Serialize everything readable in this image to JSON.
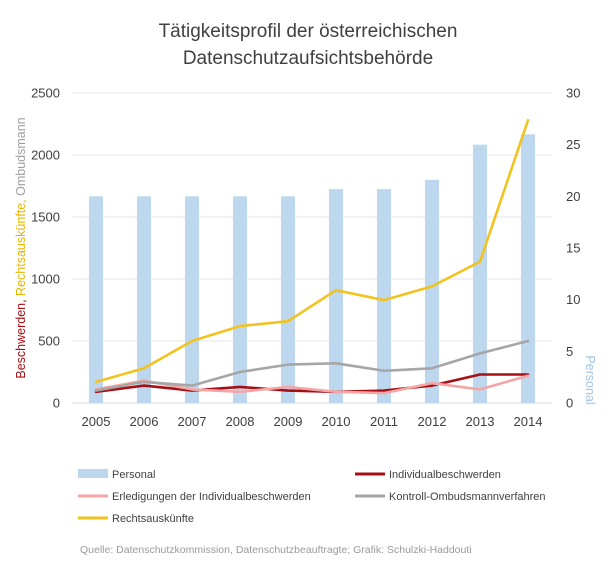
{
  "chart_data": {
    "type": "bar+line",
    "title": "Tätigkeitsprofil der österreichischen Datenschutzaufsichtsbehörde",
    "title_lines": [
      "Tätigkeitsprofil der österreichischen",
      "Datenschutzaufsichtsbehörde"
    ],
    "categories": [
      "2005",
      "2006",
      "2007",
      "2008",
      "2009",
      "2010",
      "2011",
      "2012",
      "2013",
      "2014"
    ],
    "left_axis": {
      "ylim": [
        0,
        2500
      ],
      "ticks": [
        "0",
        "500",
        "1000",
        "1500",
        "2000",
        "2500"
      ],
      "label_parts": [
        {
          "text": "Beschwerden, ",
          "color": "#a50f15"
        },
        {
          "text": "Rechtsauskünfte, ",
          "color": "#e8b400"
        },
        {
          "text": "Ombudsmann",
          "color": "#9e9e9e"
        }
      ]
    },
    "right_axis": {
      "ylim": [
        0,
        30
      ],
      "ticks": [
        "0",
        "5",
        "10",
        "15",
        "20",
        "25",
        "30"
      ],
      "label": "Personal",
      "label_color": "#9fc5e8"
    },
    "series": [
      {
        "name": "Personal",
        "type": "bar",
        "axis": "right",
        "color": "#bdd7ee",
        "values": [
          20,
          20,
          20,
          20,
          20,
          20.7,
          20.7,
          21.6,
          25,
          26
        ]
      },
      {
        "name": "Individualbeschwerden",
        "type": "line",
        "axis": "left",
        "color": "#a50f15",
        "values": [
          90,
          140,
          100,
          130,
          100,
          90,
          100,
          140,
          230,
          230
        ]
      },
      {
        "name": "Erledigungen der Individualbeschwerden",
        "type": "line",
        "axis": "left",
        "color": "#f4a6a6",
        "values": [
          110,
          180,
          110,
          90,
          130,
          90,
          80,
          160,
          110,
          220
        ]
      },
      {
        "name": "Kontroll-Ombudsmannverfahren",
        "type": "line",
        "axis": "left",
        "color": "#a6a6a6",
        "values": [
          100,
          170,
          140,
          250,
          310,
          320,
          260,
          280,
          400,
          500
        ]
      },
      {
        "name": "Rechtsauskünfte",
        "type": "line",
        "axis": "left",
        "color": "#f2c31e",
        "values": [
          170,
          280,
          500,
          620,
          660,
          910,
          830,
          940,
          1140,
          2280
        ]
      }
    ],
    "legend": [
      {
        "name": "Personal",
        "kind": "box",
        "color": "#bdd7ee"
      },
      {
        "name": "Individualbeschwerden",
        "kind": "line",
        "color": "#a50f15"
      },
      {
        "name": "Erledigungen der Individualbeschwerden",
        "kind": "line",
        "color": "#f4a6a6"
      },
      {
        "name": "Kontroll-Ombudsmannverfahren",
        "kind": "line",
        "color": "#a6a6a6"
      },
      {
        "name": "Rechtsauskünfte",
        "kind": "line",
        "color": "#f2c31e"
      }
    ],
    "source": "Quelle: Datenschutzkommission, Datenschutzbeauftragte; Grafik: Schulzki-Haddouti"
  }
}
